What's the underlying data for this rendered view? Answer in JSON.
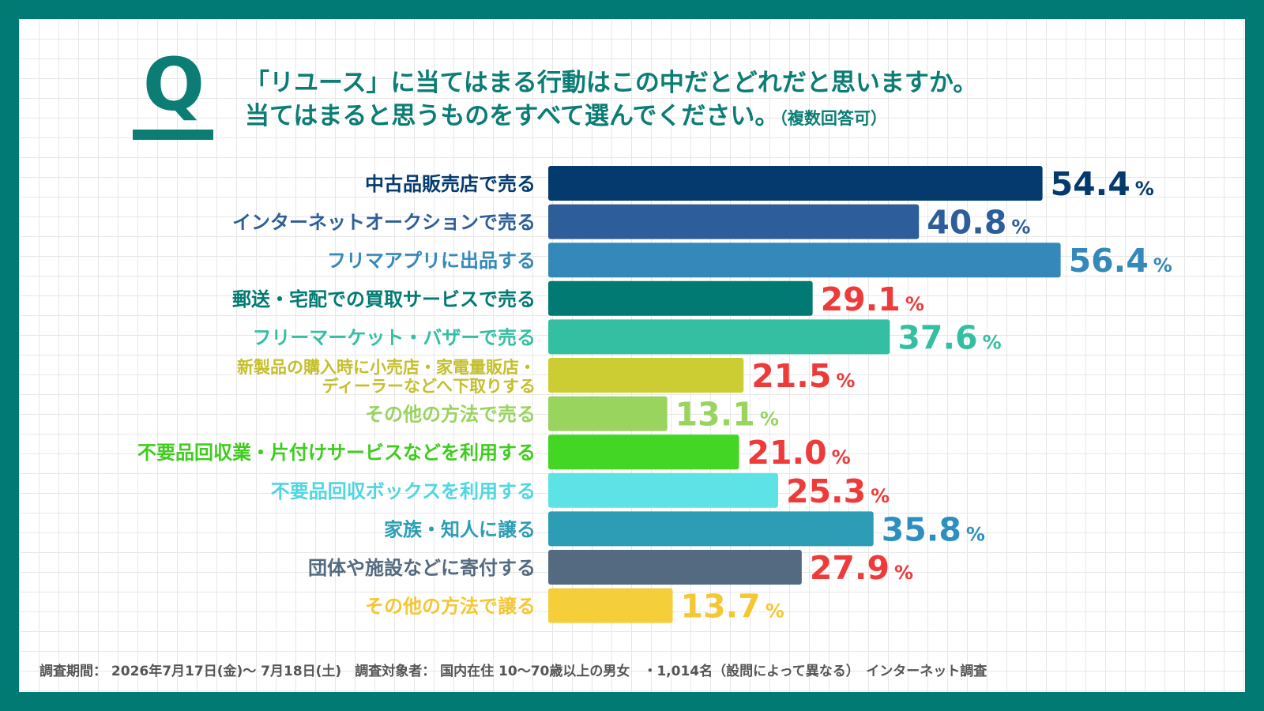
{
  "question": {
    "mark": "Q",
    "line1": "「リユース」に当てはまる行動はこの中だとどれだと思いますか。",
    "line2": "当てはまると思うものをすべて選んでください。",
    "note": "（複数回答可）"
  },
  "chart_data": {
    "type": "bar",
    "orientation": "horizontal",
    "unit": "%",
    "categories": [
      "中古品販売店で売る",
      "インターネットオークションで売る",
      "フリマアプリに出品する",
      "郵送・宅配での買取サービスで売る",
      "フリーマーケット・バザーで売る",
      "新製品の購入時に小売店・家電量販店・\nディーラーなどへ下取りする",
      "その他の方法で売る",
      "不要品回収業・片付けサービスなどを利用する",
      "不要品回収ボックスを利用する",
      "家族・知人に譲る",
      "団体や施設などに寄付する",
      "その他の方法で譲る"
    ],
    "values": [
      54.4,
      40.8,
      56.4,
      29.1,
      37.6,
      21.5,
      13.1,
      21.0,
      25.3,
      35.8,
      27.9,
      13.7
    ],
    "value_labels": [
      "54.4",
      "40.8",
      "56.4",
      "29.1",
      "37.6",
      "21.5",
      "13.1",
      "21.0",
      "25.3",
      "35.8",
      "27.9",
      "13.7"
    ],
    "bar_colors": [
      "#043a6e",
      "#2e5e99",
      "#3489ba",
      "#007a72",
      "#34bfa3",
      "#cccc33",
      "#99d45f",
      "#44d624",
      "#5de2e6",
      "#2c9db5",
      "#546a80",
      "#f5cf3a"
    ],
    "label_colors": [
      "#043a6e",
      "#2e5e99",
      "#3489ba",
      "#007a72",
      "#34bfa3",
      "#c4bf2c",
      "#99d45f",
      "#3fcc1e",
      "#4fd6e0",
      "#2c9db5",
      "#546a80",
      "#f5c733"
    ],
    "value_colors": [
      "#043a6e",
      "#2e5e99",
      "#3489ba",
      "#ef3a3a",
      "#34bfa3",
      "#ef3a3a",
      "#99d45f",
      "#ef3a3a",
      "#ef3a3a",
      "#2c8fbf",
      "#ef3a3a",
      "#f5c733"
    ],
    "xlim": [
      0,
      60
    ]
  },
  "footer": "調査期間： 2026年7月17日(金)～ 7月18日(土)　調査対象者： 国内在住 10～70歳以上の男女　・1,014名（設問によって異なる）　インターネット調査",
  "colors": {
    "frame": "#007a72",
    "accent": "#0b7d74",
    "highlight_red": "#ef3a3a"
  }
}
